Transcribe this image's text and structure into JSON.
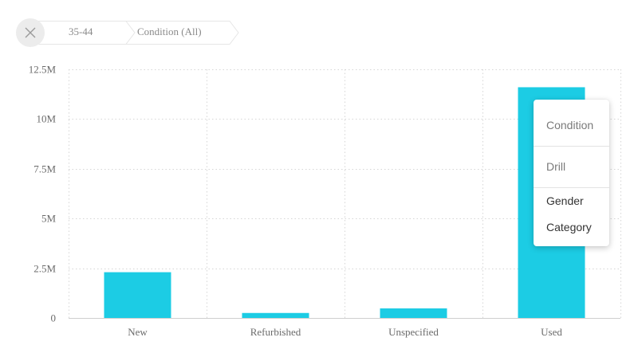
{
  "breadcrumb": {
    "close_icon": "close-icon",
    "items": [
      "35-44",
      "Condition (All)"
    ]
  },
  "context_menu": {
    "header": "Condition",
    "drill_label": "Drill",
    "options": [
      "Gender",
      "Category"
    ]
  },
  "colors": {
    "bar": "#1ccce4",
    "grid": "#d6d6d6",
    "close_bg": "#ececec"
  },
  "chart_data": {
    "type": "bar",
    "categories": [
      "New",
      "Refurbished",
      "Unspecified",
      "Used"
    ],
    "values": [
      2300000,
      250000,
      480000,
      11600000
    ],
    "ylim": [
      0,
      12500000
    ],
    "yticks": [
      0,
      2500000,
      5000000,
      7500000,
      10000000,
      12500000
    ],
    "ytick_labels": [
      "0",
      "2.5M",
      "5M",
      "7.5M",
      "10M",
      "12.5M"
    ],
    "grid": true,
    "grid_style": "dotted",
    "xlabel": "",
    "ylabel": ""
  }
}
